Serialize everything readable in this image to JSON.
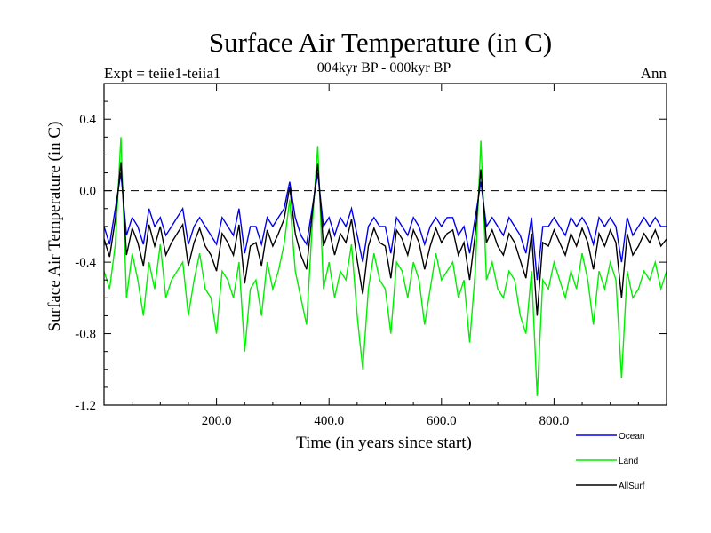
{
  "chart_data": {
    "type": "line",
    "title": "Surface Air Temperature (in C)",
    "subtitle": "004kyr BP - 000kyr BP",
    "left_note": "Expt = teiie1-teiia1",
    "right_note": "Ann",
    "xlabel": "Time (in years since start)",
    "ylabel": "Surface Air Temperature (in C)",
    "xlim": [
      0,
      1000
    ],
    "ylim": [
      -1.2,
      0.6
    ],
    "x_ticks": [
      200,
      400,
      600,
      800
    ],
    "x_tick_labels": [
      "200.0",
      "400.0",
      "600.0",
      "800.0"
    ],
    "y_ticks": [
      -1.2,
      -0.8,
      -0.4,
      0.0,
      0.4
    ],
    "y_tick_labels": [
      "-1.2",
      "-0.8",
      "-0.4",
      "0.0",
      "0.4"
    ],
    "reference_line": 0.0,
    "legend_position": "bottom-right, outside plot",
    "x_sample_interval": 10,
    "series": [
      {
        "name": "Land",
        "color": "#00ee00",
        "values": [
          -0.45,
          -0.55,
          -0.3,
          0.3,
          -0.6,
          -0.35,
          -0.5,
          -0.7,
          -0.4,
          -0.55,
          -0.3,
          -0.6,
          -0.5,
          -0.45,
          -0.4,
          -0.7,
          -0.5,
          -0.35,
          -0.55,
          -0.6,
          -0.8,
          -0.45,
          -0.5,
          -0.6,
          -0.4,
          -0.9,
          -0.55,
          -0.5,
          -0.7,
          -0.4,
          -0.55,
          -0.45,
          -0.3,
          -0.05,
          -0.45,
          -0.6,
          -0.75,
          -0.2,
          0.25,
          -0.55,
          -0.4,
          -0.6,
          -0.45,
          -0.5,
          -0.3,
          -0.7,
          -1.0,
          -0.55,
          -0.35,
          -0.5,
          -0.55,
          -0.8,
          -0.4,
          -0.45,
          -0.6,
          -0.4,
          -0.5,
          -0.75,
          -0.55,
          -0.35,
          -0.5,
          -0.45,
          -0.4,
          -0.6,
          -0.5,
          -0.85,
          -0.45,
          0.28,
          -0.5,
          -0.4,
          -0.55,
          -0.6,
          -0.45,
          -0.5,
          -0.7,
          -0.8,
          -0.45,
          -1.15,
          -0.5,
          -0.55,
          -0.4,
          -0.5,
          -0.6,
          -0.45,
          -0.55,
          -0.35,
          -0.5,
          -0.75,
          -0.45,
          -0.55,
          -0.4,
          -0.5,
          -1.05,
          -0.45,
          -0.6,
          -0.55,
          -0.45,
          -0.5,
          -0.4,
          -0.55,
          -0.45
        ]
      },
      {
        "name": "Ocean",
        "color": "#0000ee",
        "values": [
          -0.2,
          -0.3,
          -0.1,
          0.1,
          -0.25,
          -0.15,
          -0.2,
          -0.3,
          -0.1,
          -0.2,
          -0.15,
          -0.25,
          -0.2,
          -0.15,
          -0.1,
          -0.3,
          -0.2,
          -0.15,
          -0.2,
          -0.25,
          -0.3,
          -0.15,
          -0.2,
          -0.25,
          -0.1,
          -0.35,
          -0.2,
          -0.2,
          -0.3,
          -0.15,
          -0.2,
          -0.15,
          -0.1,
          0.05,
          -0.15,
          -0.25,
          -0.3,
          -0.1,
          0.1,
          -0.2,
          -0.15,
          -0.25,
          -0.15,
          -0.2,
          -0.1,
          -0.25,
          -0.4,
          -0.2,
          -0.15,
          -0.2,
          -0.2,
          -0.35,
          -0.15,
          -0.2,
          -0.25,
          -0.15,
          -0.2,
          -0.3,
          -0.2,
          -0.15,
          -0.2,
          -0.15,
          -0.15,
          -0.25,
          -0.2,
          -0.35,
          -0.15,
          0.05,
          -0.2,
          -0.15,
          -0.2,
          -0.25,
          -0.15,
          -0.2,
          -0.25,
          -0.35,
          -0.15,
          -0.5,
          -0.2,
          -0.2,
          -0.15,
          -0.2,
          -0.25,
          -0.15,
          -0.2,
          -0.15,
          -0.2,
          -0.3,
          -0.15,
          -0.2,
          -0.15,
          -0.2,
          -0.4,
          -0.15,
          -0.25,
          -0.2,
          -0.15,
          -0.2,
          -0.15,
          -0.2,
          -0.2
        ]
      },
      {
        "name": "AllSurf",
        "color": "#000000",
        "values": [
          -0.27,
          -0.37,
          -0.16,
          0.16,
          -0.36,
          -0.21,
          -0.29,
          -0.42,
          -0.19,
          -0.31,
          -0.2,
          -0.36,
          -0.29,
          -0.24,
          -0.19,
          -0.42,
          -0.29,
          -0.21,
          -0.31,
          -0.36,
          -0.45,
          -0.24,
          -0.29,
          -0.36,
          -0.19,
          -0.52,
          -0.31,
          -0.29,
          -0.42,
          -0.22,
          -0.31,
          -0.24,
          -0.16,
          0.02,
          -0.24,
          -0.36,
          -0.44,
          -0.13,
          0.15,
          -0.31,
          -0.22,
          -0.36,
          -0.24,
          -0.29,
          -0.16,
          -0.39,
          -0.58,
          -0.31,
          -0.21,
          -0.29,
          -0.31,
          -0.49,
          -0.22,
          -0.27,
          -0.36,
          -0.22,
          -0.29,
          -0.44,
          -0.31,
          -0.21,
          -0.29,
          -0.24,
          -0.22,
          -0.36,
          -0.29,
          -0.5,
          -0.24,
          0.12,
          -0.29,
          -0.22,
          -0.31,
          -0.36,
          -0.24,
          -0.29,
          -0.39,
          -0.49,
          -0.24,
          -0.7,
          -0.29,
          -0.31,
          -0.22,
          -0.29,
          -0.36,
          -0.24,
          -0.31,
          -0.21,
          -0.29,
          -0.44,
          -0.24,
          -0.31,
          -0.22,
          -0.29,
          -0.6,
          -0.24,
          -0.36,
          -0.31,
          -0.24,
          -0.29,
          -0.22,
          -0.31,
          -0.27
        ]
      }
    ],
    "legend": [
      {
        "name": "Ocean",
        "color": "#0000ee"
      },
      {
        "name": "Land",
        "color": "#00ee00"
      },
      {
        "name": "AllSurf",
        "color": "#000000"
      }
    ]
  }
}
